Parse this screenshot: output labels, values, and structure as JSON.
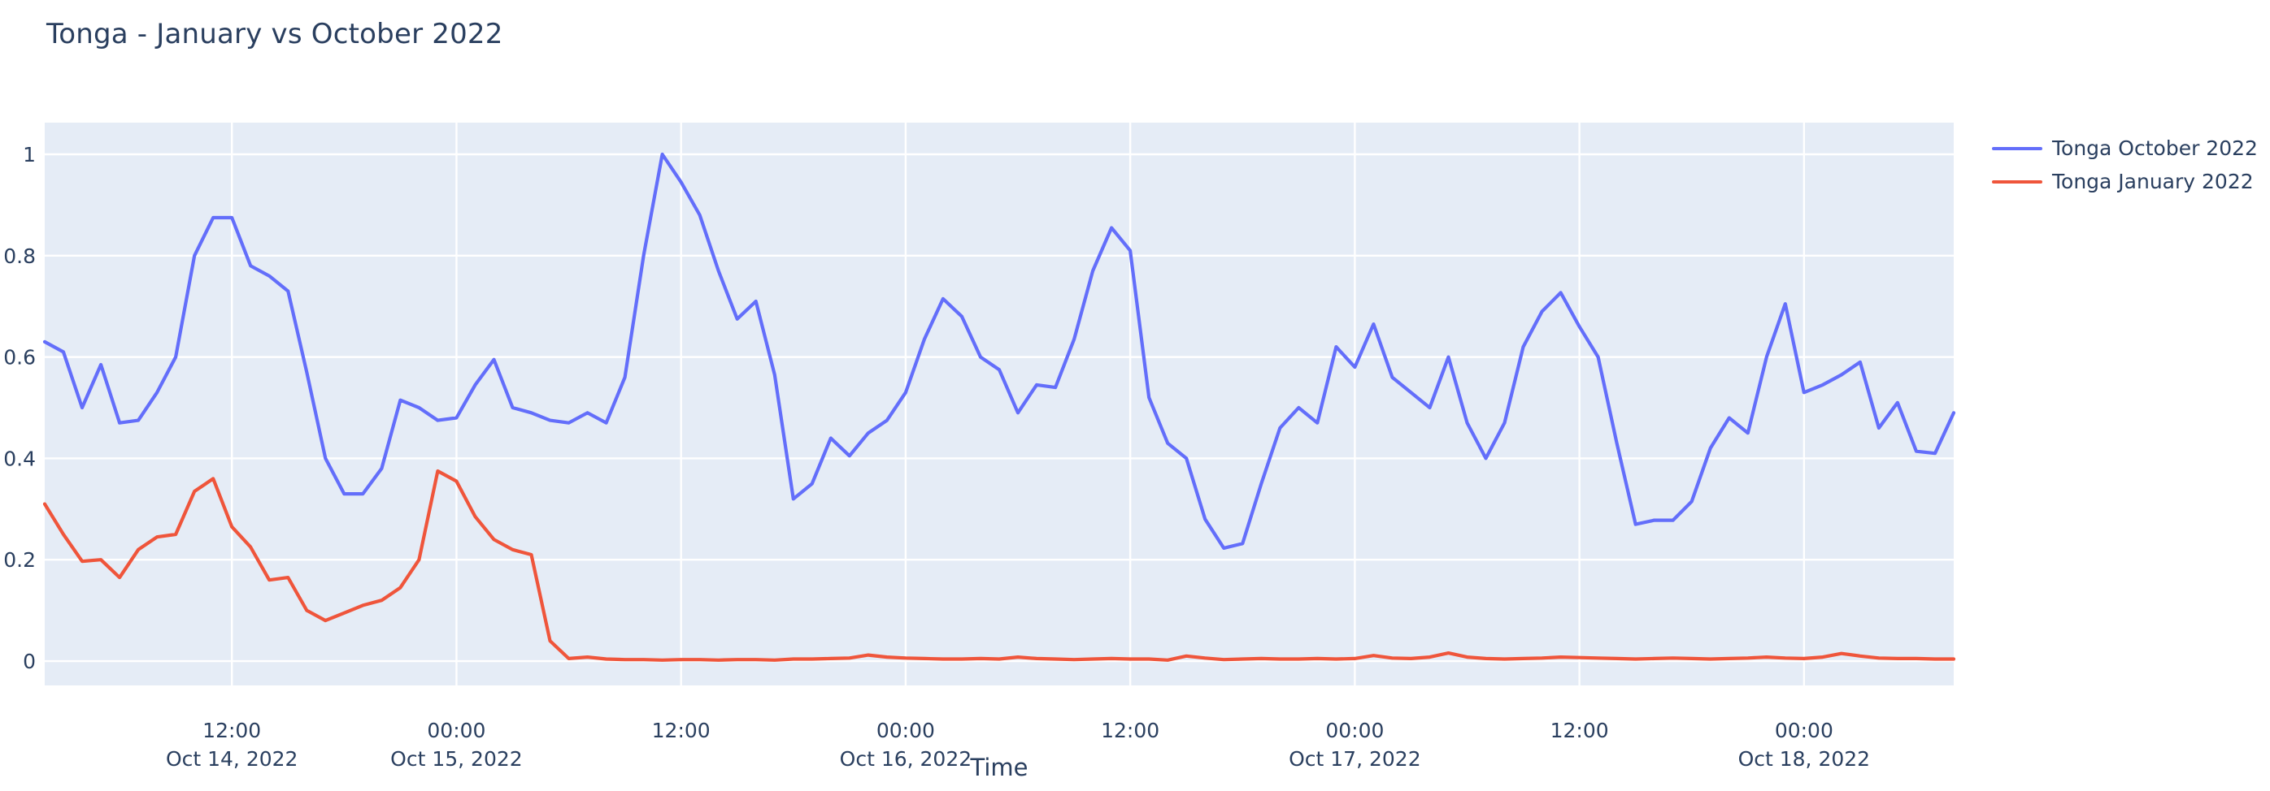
{
  "page": {
    "title": "Tonga - January vs October 2022"
  },
  "legend": {
    "items": [
      {
        "label": "Tonga October 2022",
        "color": "#636EFA"
      },
      {
        "label": "Tonga January 2022",
        "color": "#EF553B"
      }
    ]
  },
  "chart_data": {
    "type": "line",
    "title": "Tonga - January vs October 2022",
    "xlabel": "Time",
    "ylabel": "",
    "x_start": "2022-10-14 02:00",
    "x_interval_hours": 1,
    "x_hours_range": [
      2,
      104
    ],
    "ylim": [
      -0.048,
      1.0625
    ],
    "grid": true,
    "legend_position": "right-top",
    "plot_bg": "#E5ECF6",
    "grid_color": "#FFFFFF",
    "text_color": "#2a3f5f",
    "y_ticks": [
      0,
      0.2,
      0.4,
      0.6,
      0.8,
      1
    ],
    "x_ticks": [
      {
        "hour": 12,
        "time": "12:00",
        "date": "Oct 14, 2022"
      },
      {
        "hour": 24,
        "time": "00:00",
        "date": "Oct 15, 2022"
      },
      {
        "hour": 36,
        "time": "12:00",
        "date": ""
      },
      {
        "hour": 48,
        "time": "00:00",
        "date": "Oct 16, 2022"
      },
      {
        "hour": 60,
        "time": "12:00",
        "date": ""
      },
      {
        "hour": 72,
        "time": "00:00",
        "date": "Oct 17, 2022"
      },
      {
        "hour": 84,
        "time": "12:00",
        "date": ""
      },
      {
        "hour": 96,
        "time": "00:00",
        "date": "Oct 18, 2022"
      }
    ],
    "series": [
      {
        "name": "Tonga October 2022",
        "color": "#636EFA",
        "values": [
          0.63,
          0.61,
          0.5,
          0.585,
          0.47,
          0.475,
          0.53,
          0.6,
          0.8,
          0.875,
          0.875,
          0.78,
          0.76,
          0.73,
          0.57,
          0.4,
          0.33,
          0.33,
          0.38,
          0.515,
          0.5,
          0.475,
          0.48,
          0.545,
          0.595,
          0.5,
          0.49,
          0.475,
          0.47,
          0.49,
          0.47,
          0.56,
          0.8,
          1.0,
          0.945,
          0.88,
          0.77,
          0.675,
          0.71,
          0.565,
          0.32,
          0.35,
          0.44,
          0.405,
          0.45,
          0.475,
          0.53,
          0.635,
          0.715,
          0.68,
          0.6,
          0.575,
          0.49,
          0.545,
          0.54,
          0.635,
          0.77,
          0.855,
          0.81,
          0.52,
          0.43,
          0.4,
          0.28,
          0.223,
          0.232,
          0.35,
          0.46,
          0.5,
          0.47,
          0.62,
          0.58,
          0.665,
          0.56,
          0.53,
          0.5,
          0.6,
          0.47,
          0.4,
          0.47,
          0.62,
          0.69,
          0.727,
          0.66,
          0.6,
          0.43,
          0.27,
          0.278,
          0.278,
          0.315,
          0.42,
          0.48,
          0.45,
          0.6,
          0.705,
          0.53,
          0.545,
          0.565,
          0.59,
          0.46,
          0.51,
          0.414,
          0.41,
          0.49
        ]
      },
      {
        "name": "Tonga January 2022",
        "color": "#EF553B",
        "values": [
          0.31,
          0.25,
          0.197,
          0.2,
          0.165,
          0.22,
          0.245,
          0.25,
          0.335,
          0.36,
          0.265,
          0.225,
          0.16,
          0.165,
          0.1,
          0.08,
          0.095,
          0.11,
          0.12,
          0.145,
          0.2,
          0.375,
          0.355,
          0.285,
          0.24,
          0.22,
          0.21,
          0.04,
          0.005,
          0.008,
          0.004,
          0.003,
          0.003,
          0.002,
          0.003,
          0.003,
          0.002,
          0.003,
          0.003,
          0.002,
          0.004,
          0.004,
          0.005,
          0.006,
          0.012,
          0.008,
          0.006,
          0.005,
          0.004,
          0.004,
          0.005,
          0.004,
          0.008,
          0.005,
          0.004,
          0.003,
          0.004,
          0.005,
          0.004,
          0.004,
          0.002,
          0.01,
          0.006,
          0.003,
          0.004,
          0.005,
          0.004,
          0.004,
          0.005,
          0.004,
          0.005,
          0.011,
          0.006,
          0.005,
          0.008,
          0.016,
          0.008,
          0.005,
          0.004,
          0.005,
          0.006,
          0.008,
          0.007,
          0.006,
          0.005,
          0.004,
          0.005,
          0.006,
          0.005,
          0.004,
          0.005,
          0.006,
          0.008,
          0.006,
          0.005,
          0.008,
          0.015,
          0.01,
          0.006,
          0.005,
          0.005,
          0.004,
          0.004
        ]
      }
    ]
  }
}
